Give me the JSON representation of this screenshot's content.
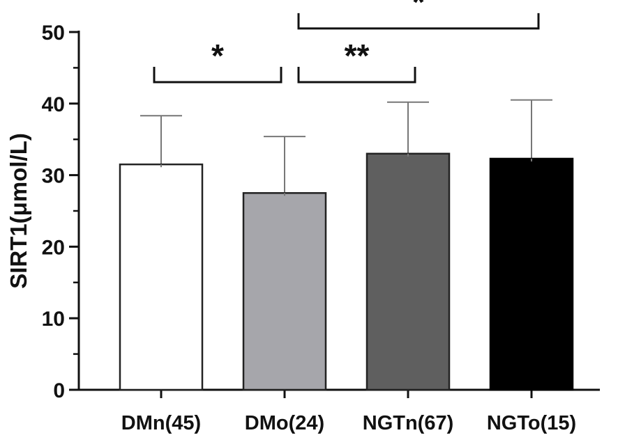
{
  "chart_data": {
    "type": "bar",
    "title": "",
    "xlabel": "",
    "ylabel": "SIRT1(μmol/L)",
    "ylim": [
      0,
      50
    ],
    "yticks": [
      0,
      10,
      20,
      30,
      40,
      50
    ],
    "yticks_labels": [
      "0",
      "10",
      "20",
      "30",
      "40",
      "50"
    ],
    "categories": [
      "DMn(45)",
      "DMo(24)",
      "NGTn(67)",
      "NGTo(15)"
    ],
    "values": [
      31.5,
      27.5,
      33.0,
      32.3
    ],
    "error_upper": [
      38.3,
      35.4,
      40.2,
      40.5
    ],
    "colors": [
      "#ffffff",
      "#a6a6ab",
      "#5f5f5f",
      "#000000"
    ],
    "significance": [
      {
        "from": 0,
        "to": 1,
        "label": "*",
        "y": 43
      },
      {
        "from": 1,
        "to": 2,
        "label": "**",
        "y": 43
      },
      {
        "from": 1,
        "to": 3,
        "label": "*",
        "y": 50.5
      }
    ]
  }
}
